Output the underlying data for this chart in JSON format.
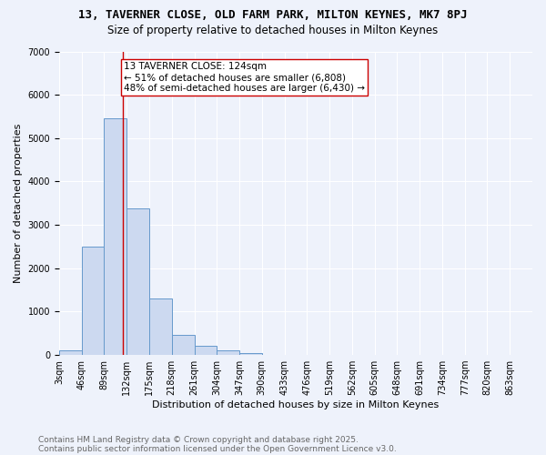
{
  "title_line1": "13, TAVERNER CLOSE, OLD FARM PARK, MILTON KEYNES, MK7 8PJ",
  "title_line2": "Size of property relative to detached houses in Milton Keynes",
  "xlabel": "Distribution of detached houses by size in Milton Keynes",
  "ylabel": "Number of detached properties",
  "bar_color": "#ccd9f0",
  "bar_edge_color": "#6699cc",
  "background_color": "#eef2fb",
  "grid_color": "#ffffff",
  "bin_edges": [
    3,
    46,
    89,
    132,
    175,
    218,
    261,
    304,
    347,
    390,
    433,
    476,
    519,
    562,
    605,
    648,
    691,
    734,
    777,
    820,
    863
  ],
  "bin_labels": [
    "3sqm",
    "46sqm",
    "89sqm",
    "132sqm",
    "175sqm",
    "218sqm",
    "261sqm",
    "304sqm",
    "347sqm",
    "390sqm",
    "433sqm",
    "476sqm",
    "519sqm",
    "562sqm",
    "605sqm",
    "648sqm",
    "691sqm",
    "734sqm",
    "777sqm",
    "820sqm",
    "863sqm"
  ],
  "bar_heights": [
    100,
    2500,
    5450,
    3380,
    1310,
    460,
    210,
    100,
    50,
    0,
    0,
    0,
    0,
    0,
    0,
    0,
    0,
    0,
    0,
    0
  ],
  "vline_x": 124,
  "vline_color": "#cc0000",
  "annotation_text": "13 TAVERNER CLOSE: 124sqm\n← 51% of detached houses are smaller (6,808)\n48% of semi-detached houses are larger (6,430) →",
  "annotation_box_color": "#ffffff",
  "annotation_box_edge": "#cc0000",
  "ylim": [
    0,
    7000
  ],
  "yticks": [
    0,
    1000,
    2000,
    3000,
    4000,
    5000,
    6000,
    7000
  ],
  "footnote1": "Contains HM Land Registry data © Crown copyright and database right 2025.",
  "footnote2": "Contains public sector information licensed under the Open Government Licence v3.0.",
  "title_fontsize": 9,
  "subtitle_fontsize": 8.5,
  "label_fontsize": 8,
  "tick_fontsize": 7,
  "annotation_fontsize": 7.5,
  "footnote_fontsize": 6.5
}
